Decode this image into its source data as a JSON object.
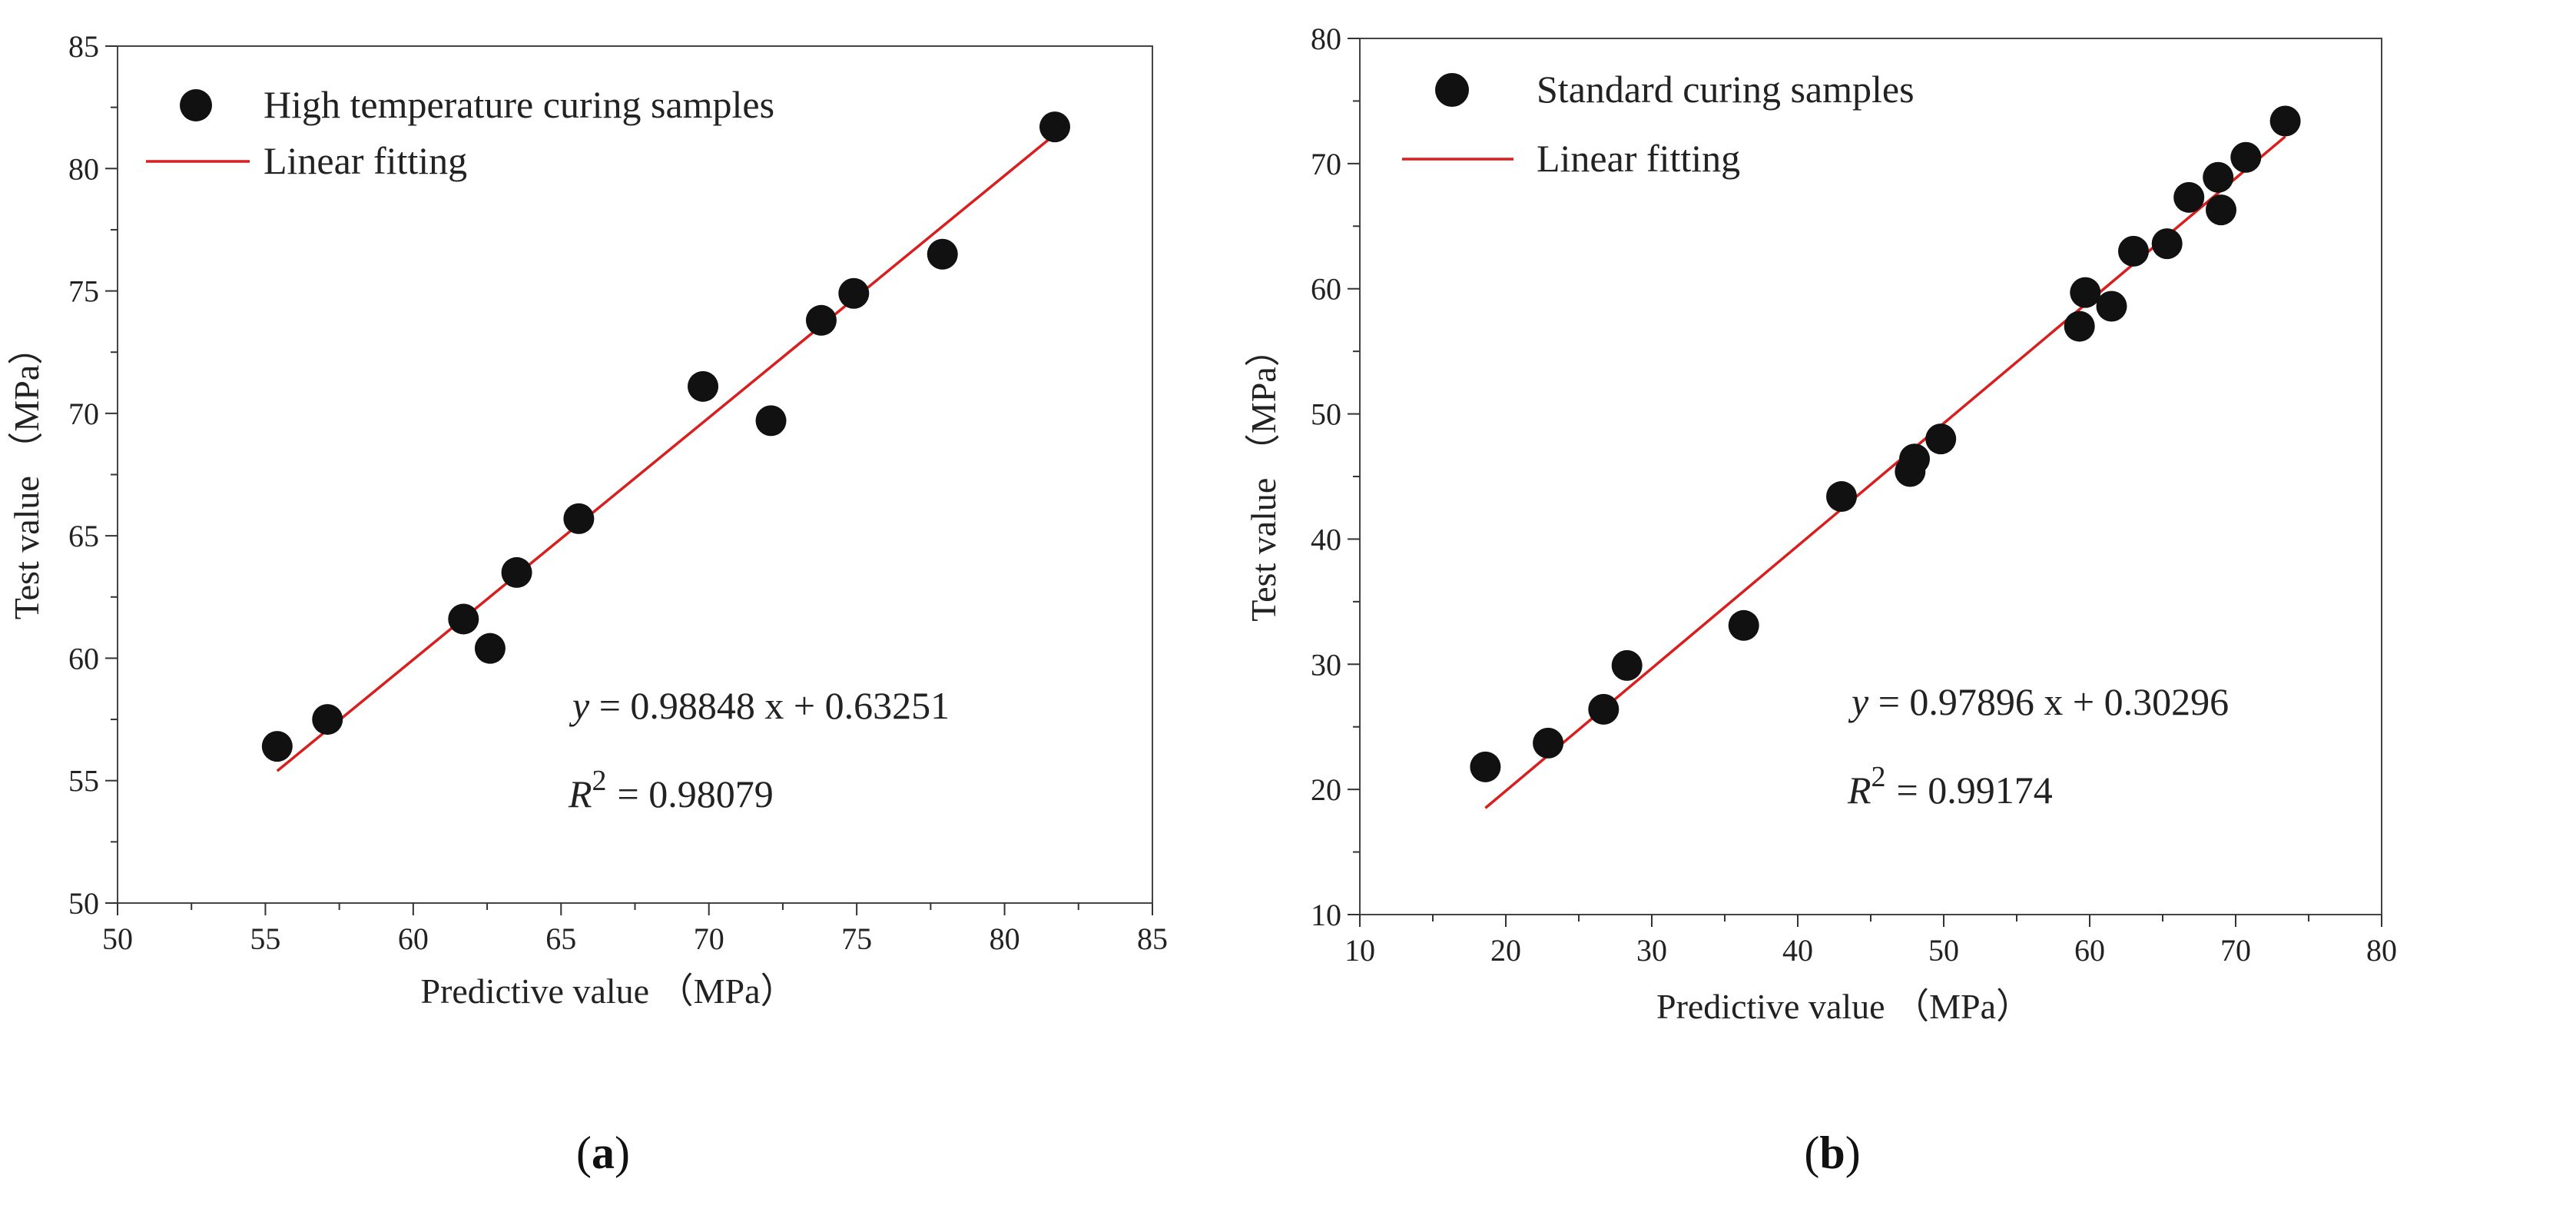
{
  "colors": {
    "point": "#111111",
    "fit_line": "#d81e1e",
    "axis": "#333333",
    "frame": "#444444"
  },
  "chart_data": [
    {
      "panel_label": "a",
      "type": "scatter",
      "xlabel": "Predictive value （MPa）",
      "ylabel": "Test value （MPa）",
      "xlim": [
        50,
        85
      ],
      "ylim": [
        50,
        85
      ],
      "xticks": [
        50,
        55,
        60,
        65,
        70,
        75,
        80,
        85
      ],
      "yticks": [
        50,
        55,
        60,
        65,
        70,
        75,
        80,
        85
      ],
      "legend": {
        "position": "top-left",
        "entries": [
          {
            "kind": "point",
            "label": "High temperature curing samples"
          },
          {
            "kind": "line",
            "label": "Linear fitting"
          }
        ]
      },
      "series": [
        {
          "name": "High temperature curing samples",
          "points": [
            {
              "x": 55.4,
              "y": 56.4
            },
            {
              "x": 57.1,
              "y": 57.5
            },
            {
              "x": 61.7,
              "y": 61.6
            },
            {
              "x": 62.6,
              "y": 60.4
            },
            {
              "x": 63.5,
              "y": 63.5
            },
            {
              "x": 65.6,
              "y": 65.7
            },
            {
              "x": 69.8,
              "y": 71.1
            },
            {
              "x": 72.1,
              "y": 69.7
            },
            {
              "x": 73.8,
              "y": 73.8
            },
            {
              "x": 74.9,
              "y": 74.9
            },
            {
              "x": 77.9,
              "y": 76.5
            },
            {
              "x": 81.7,
              "y": 81.7
            }
          ]
        }
      ],
      "fit": {
        "slope": 0.98848,
        "intercept": 0.63251,
        "x_range": [
          55.4,
          81.7
        ]
      },
      "annotation": {
        "equation": "= 0.98848 x + 0.63251",
        "r2": "= 0.98079"
      }
    },
    {
      "panel_label": "b",
      "type": "scatter",
      "xlabel": "Predictive value （MPa）",
      "ylabel": "Test value （MPa）",
      "xlim": [
        10,
        80
      ],
      "ylim": [
        10,
        80
      ],
      "xticks": [
        10,
        20,
        30,
        40,
        50,
        60,
        70,
        80
      ],
      "yticks": [
        10,
        20,
        30,
        40,
        50,
        60,
        70,
        80
      ],
      "legend": {
        "position": "top-left",
        "entries": [
          {
            "kind": "point",
            "label": "Standard curing samples"
          },
          {
            "kind": "line",
            "label": "Linear fitting"
          }
        ]
      },
      "series": [
        {
          "name": "Standard curing samples",
          "points": [
            {
              "x": 18.6,
              "y": 21.8
            },
            {
              "x": 22.9,
              "y": 23.7
            },
            {
              "x": 26.7,
              "y": 26.4
            },
            {
              "x": 28.3,
              "y": 29.9
            },
            {
              "x": 36.3,
              "y": 33.1
            },
            {
              "x": 43.0,
              "y": 43.4
            },
            {
              "x": 47.7,
              "y": 45.4
            },
            {
              "x": 48.0,
              "y": 46.4
            },
            {
              "x": 49.8,
              "y": 48.0
            },
            {
              "x": 59.3,
              "y": 57.0
            },
            {
              "x": 59.7,
              "y": 59.7
            },
            {
              "x": 61.5,
              "y": 58.6
            },
            {
              "x": 63.0,
              "y": 63.0
            },
            {
              "x": 65.3,
              "y": 63.6
            },
            {
              "x": 66.8,
              "y": 67.3
            },
            {
              "x": 68.8,
              "y": 68.9
            },
            {
              "x": 69.0,
              "y": 66.3
            },
            {
              "x": 70.7,
              "y": 70.5
            },
            {
              "x": 73.4,
              "y": 73.4
            }
          ]
        }
      ],
      "fit": {
        "slope": 0.97896,
        "intercept": 0.30296,
        "x_range": [
          18.6,
          73.4
        ]
      },
      "annotation": {
        "equation": "= 0.97896 x + 0.30296",
        "r2": "= 0.99174"
      }
    }
  ]
}
